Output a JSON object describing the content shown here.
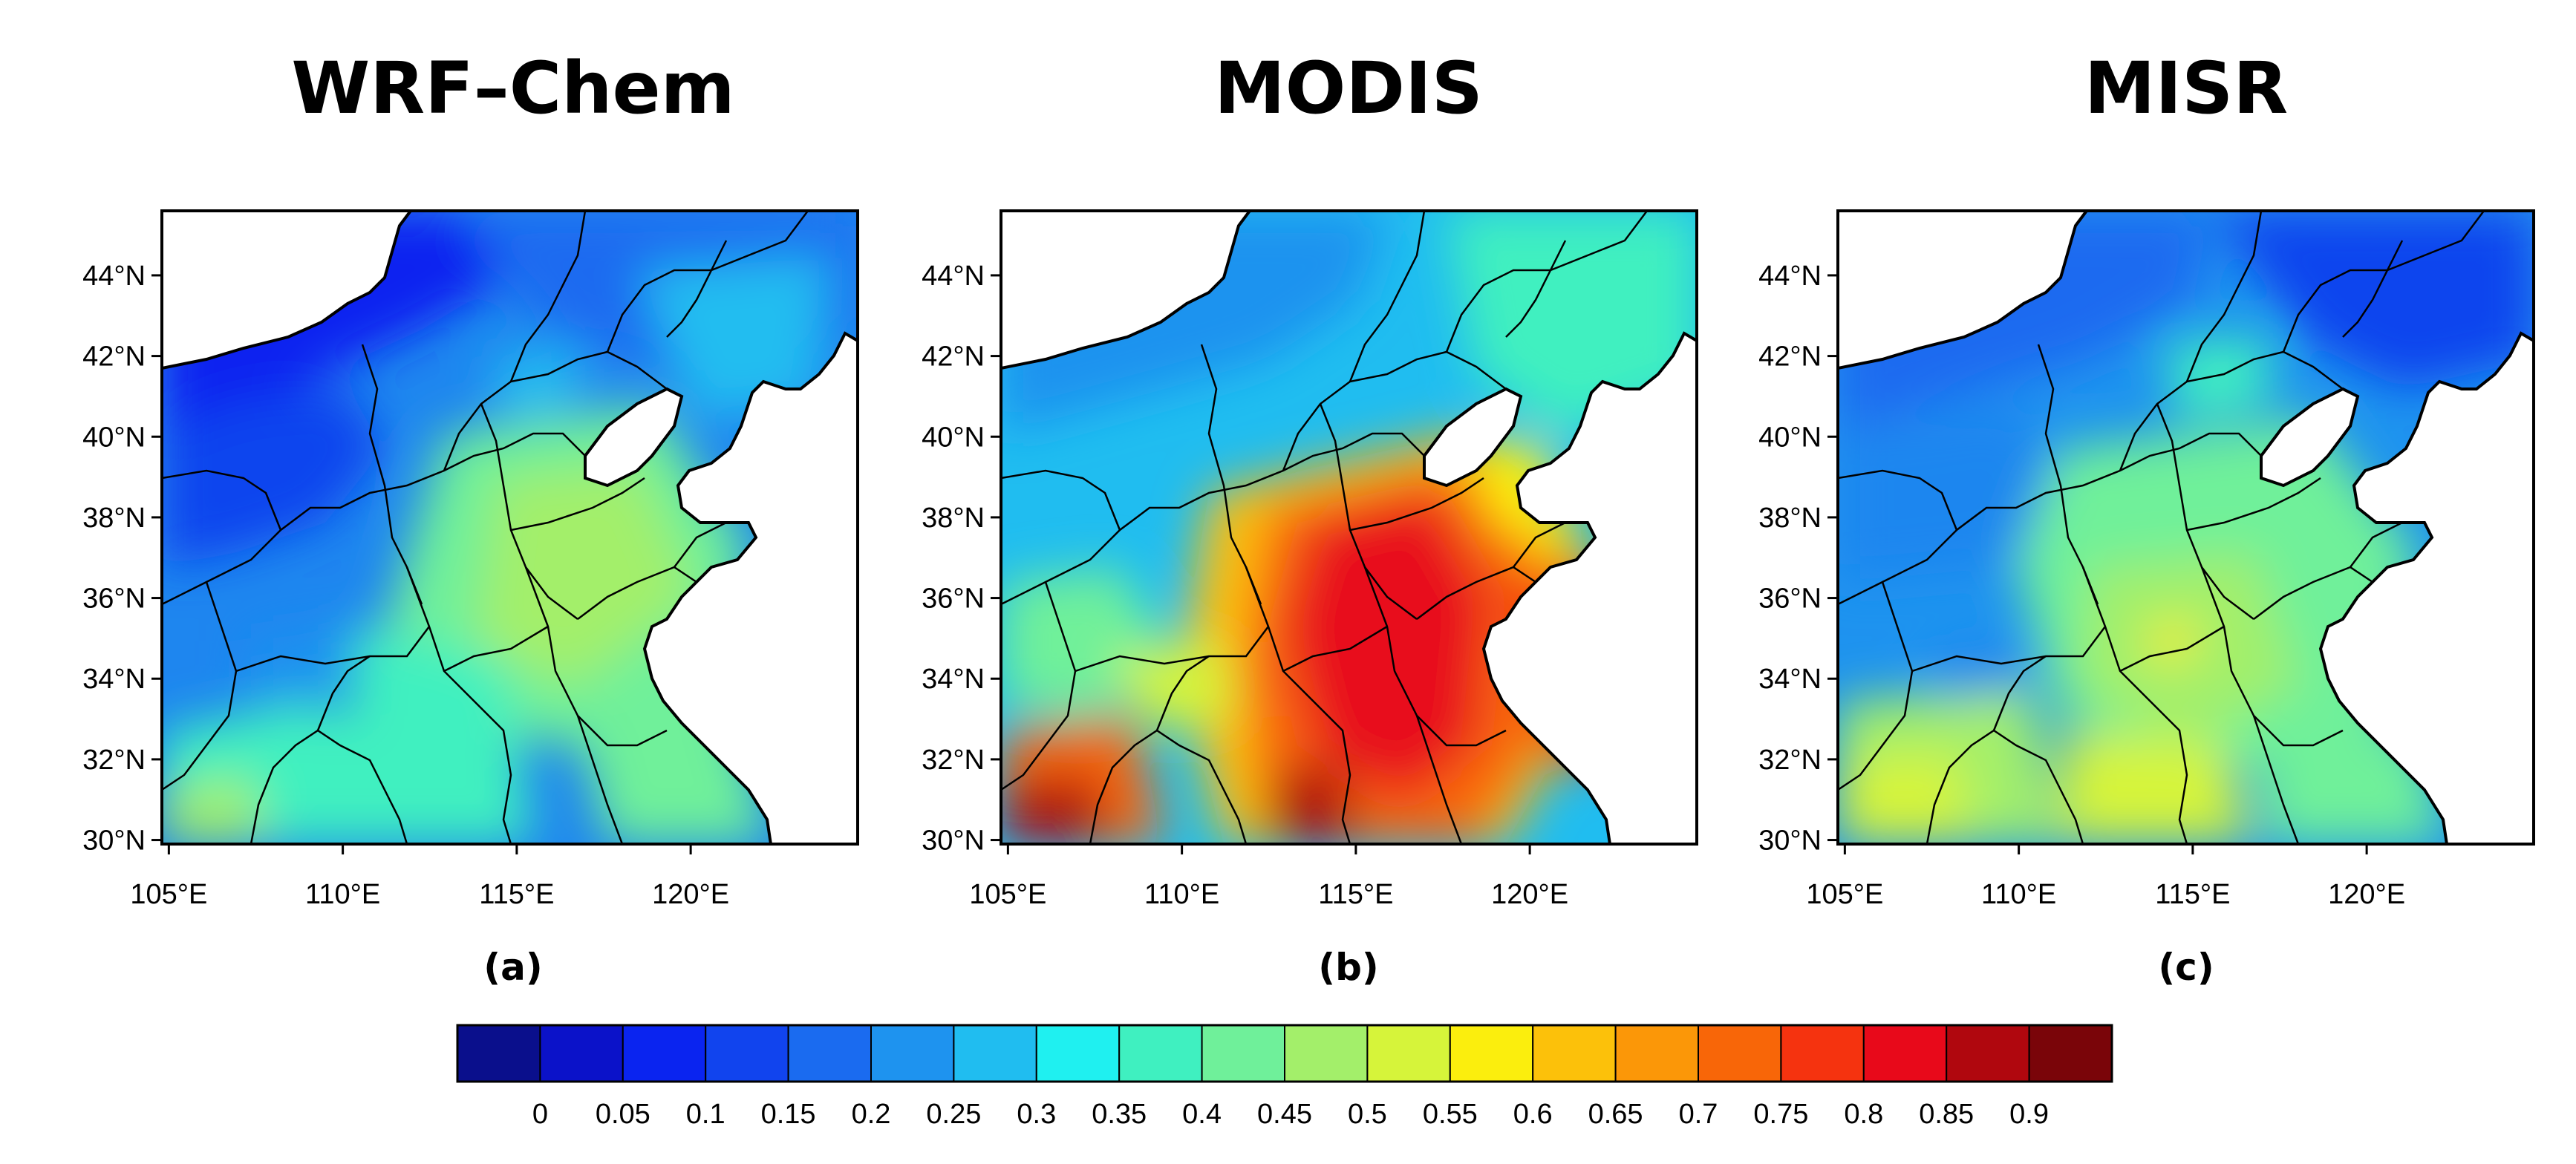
{
  "figure": {
    "panels": [
      {
        "title": "WRF–Chem",
        "tag": "(a)"
      },
      {
        "title": "MODIS",
        "tag": "(b)"
      },
      {
        "title": "MISR",
        "tag": "(c)"
      }
    ],
    "lat_labels": [
      "44°N",
      "42°N",
      "40°N",
      "38°N",
      "36°N",
      "34°N",
      "32°N",
      "30°N"
    ],
    "lon_labels": [
      "105°E",
      "110°E",
      "115°E",
      "120°E"
    ]
  },
  "map_data": {
    "lon_range": [
      104.8,
      124.8
    ],
    "lat_range": [
      29.9,
      45.6
    ],
    "lon_ticks": [
      105,
      110,
      115,
      120
    ],
    "lat_ticks": [
      44,
      42,
      40,
      38,
      36,
      34,
      32,
      30
    ]
  },
  "colorbar": {
    "labels": [
      "0",
      "0.05",
      "0.1",
      "0.15",
      "0.2",
      "0.25",
      "0.3",
      "0.35",
      "0.4",
      "0.45",
      "0.5",
      "0.55",
      "0.6",
      "0.65",
      "0.7",
      "0.75",
      "0.8",
      "0.85",
      "0.9"
    ],
    "colors": [
      "#0a0f8c",
      "#0b12c9",
      "#0a24f0",
      "#1144ee",
      "#1a6bf0",
      "#1e93ef",
      "#20bdf0",
      "#1ff0f0",
      "#3ff0c0",
      "#6ff09a",
      "#a3ef6a",
      "#d6f43a",
      "#fbee0d",
      "#fcc10a",
      "#fb9708",
      "#f86608",
      "#f5330f",
      "#e8091a",
      "#b0070e",
      "#7a0509"
    ]
  }
}
